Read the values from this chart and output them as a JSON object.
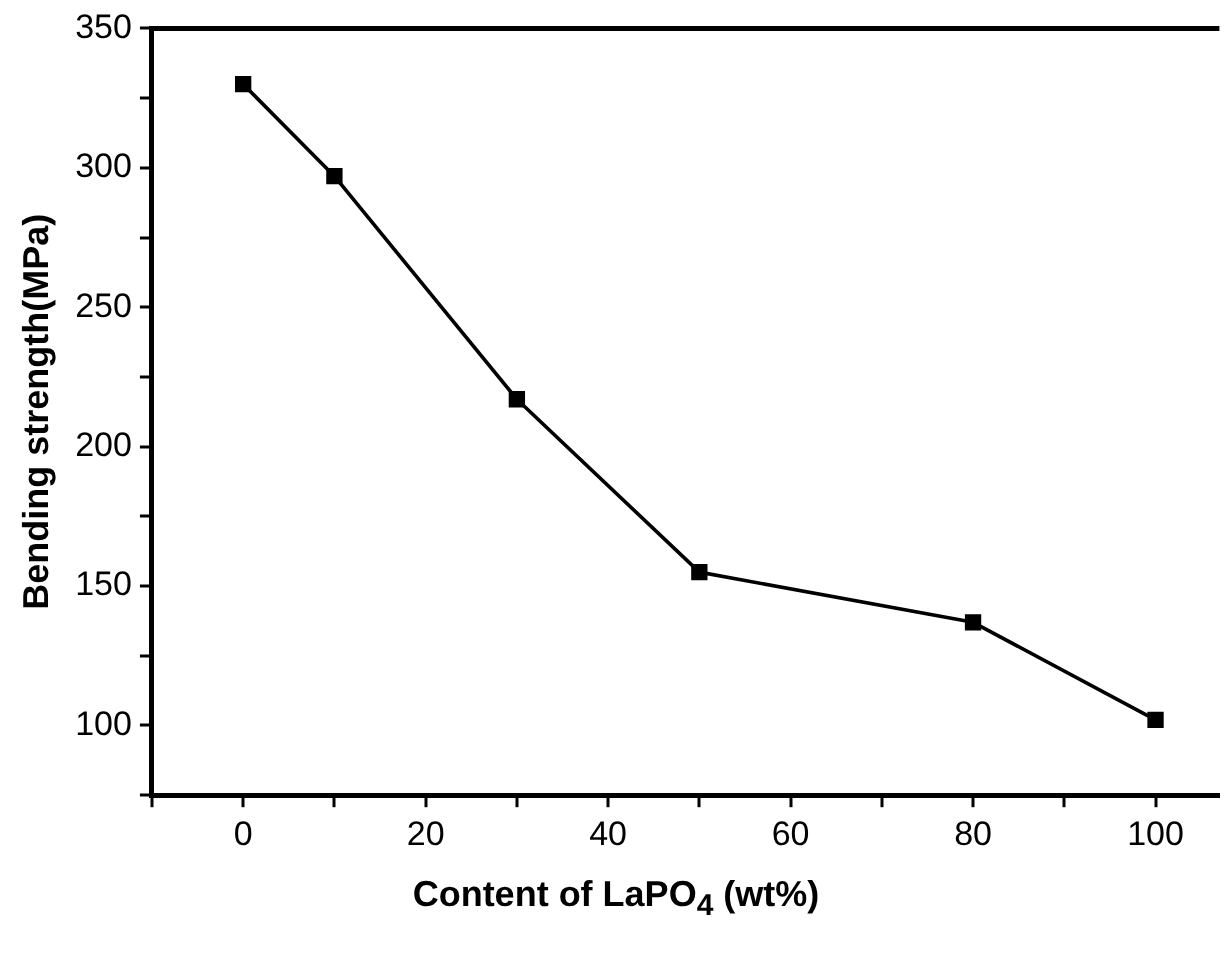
{
  "chart_data": {
    "type": "line",
    "xlabel": "Content of LaPO$_{4}$ (wt%)",
    "ylabel": "Bending strength(MPa)",
    "x": [
      0,
      10,
      30,
      50,
      80,
      100
    ],
    "series": [
      {
        "color": "#000000",
        "values": [
          330,
          297,
          217,
          155,
          137,
          102
        ]
      }
    ],
    "marker": "square",
    "line_style": "solid",
    "grid": false,
    "legend": false,
    "xlim": [
      -10,
      107
    ],
    "xticks": [
      {
        "value": -10,
        "label": null
      },
      0,
      {
        "value": 10,
        "label": null
      },
      20,
      {
        "value": 30,
        "label": null
      },
      40,
      {
        "value": 50,
        "label": null
      },
      60,
      {
        "value": 70,
        "label": null
      },
      80,
      {
        "value": 90,
        "label": null
      },
      100
    ],
    "ylim": [
      75,
      350
    ],
    "yticks": [
      {
        "value": 75,
        "label": null
      },
      100,
      {
        "value": 125,
        "label": null
      },
      150,
      {
        "value": 175,
        "label": null
      },
      200,
      {
        "value": 225,
        "label": null
      },
      250,
      {
        "value": 275,
        "label": null
      },
      300,
      {
        "value": 325,
        "label": null
      },
      350
    ]
  }
}
